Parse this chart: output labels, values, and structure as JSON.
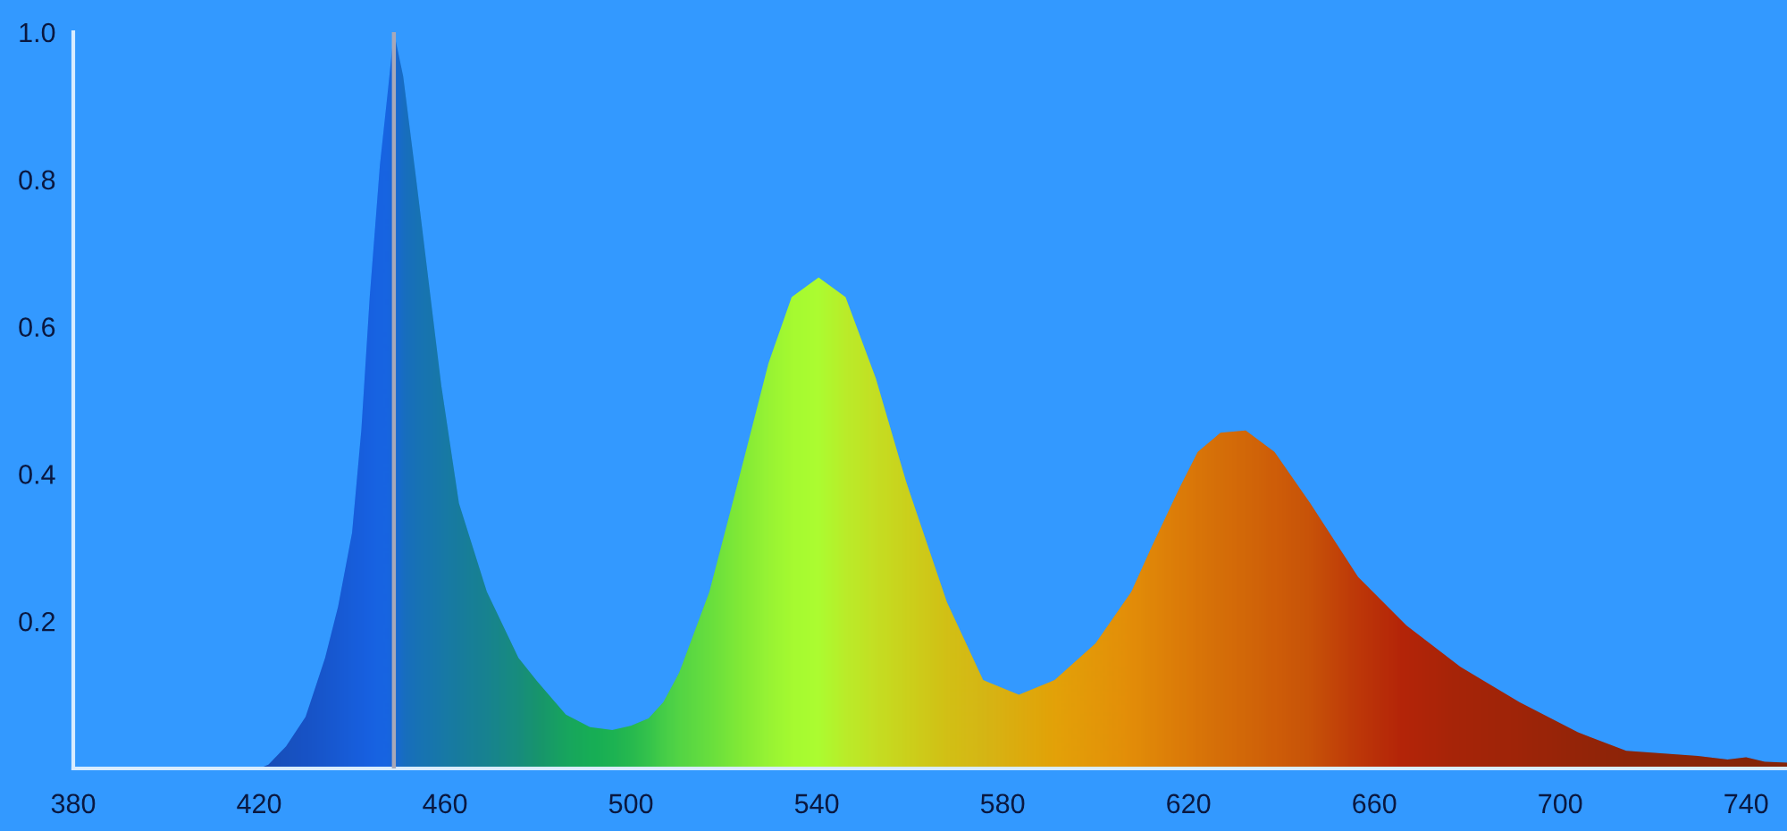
{
  "chart_data": {
    "type": "area",
    "x": [
      420,
      422,
      425.8,
      430,
      434.2,
      437,
      440,
      442,
      443.8,
      446,
      447.7,
      449,
      451,
      453.8,
      456.5,
      459.2,
      463,
      469,
      475.8,
      479.6,
      486,
      491.2,
      496,
      500,
      503.8,
      507,
      510.4,
      516.9,
      523.1,
      529.6,
      534.6,
      540.4,
      546.2,
      552.7,
      559.2,
      568,
      575.8,
      583.5,
      591.2,
      600,
      607.7,
      612,
      618,
      622,
      626.9,
      632.3,
      638.5,
      646.2,
      656.5,
      666.9,
      678.5,
      691.2,
      703.8,
      714.2,
      729.6,
      736,
      740,
      744,
      748.8
    ],
    "values": [
      0,
      0.005,
      0.03,
      0.07,
      0.15,
      0.22,
      0.32,
      0.46,
      0.64,
      0.82,
      0.92,
      1.0,
      0.94,
      0.8,
      0.66,
      0.52,
      0.36,
      0.24,
      0.15,
      0.12,
      0.073,
      0.056,
      0.052,
      0.058,
      0.068,
      0.09,
      0.13,
      0.24,
      0.39,
      0.55,
      0.64,
      0.667,
      0.64,
      0.53,
      0.39,
      0.226,
      0.12,
      0.1,
      0.12,
      0.17,
      0.24,
      0.3,
      0.38,
      0.43,
      0.456,
      0.459,
      0.43,
      0.36,
      0.26,
      0.194,
      0.138,
      0.09,
      0.049,
      0.024,
      0.017,
      0.012,
      0.015,
      0.009,
      0.008
    ],
    "colors": [
      "#0030c8",
      "#0032d0",
      "#0035d8",
      "#0038e0",
      "#003ce8",
      "#0040f0",
      "#0044f8",
      "#0046fc",
      "#0048ff",
      "#004cff",
      "#004cff",
      "#0050f0",
      "#0058d8",
      "#005ccc",
      "#0060c4",
      "#0064bc",
      "#0068b0",
      "#0070a0",
      "#007c8a",
      "#008478",
      "#009866",
      "#00a25c",
      "#08a858",
      "#14b054",
      "#24bc50",
      "#38c84c",
      "#48d048",
      "#60dc40",
      "#7ce838",
      "#98f434",
      "#a8fc30",
      "#b0ff30",
      "#c0ec28",
      "#ccdc20",
      "#d4cc18",
      "#dcb810",
      "#e0ac10",
      "#e8a008",
      "#f09400",
      "#f08800",
      "#f07c00",
      "#ec7400",
      "#e86800",
      "#e46000",
      "#e05800",
      "#dc5000",
      "#d84400",
      "#d03800",
      "#c41800",
      "#b80000",
      "#a80000",
      "#a00000",
      "#940000",
      "#8c0000",
      "#880000",
      "#840000",
      "#820000",
      "#800000",
      "#800000"
    ],
    "xlim": [
      380,
      748.8
    ],
    "ylim": [
      0,
      1.0
    ],
    "xticks": [
      380,
      420,
      460,
      500,
      540,
      580,
      620,
      660,
      700,
      740
    ],
    "yticks": [
      0.2,
      0.4,
      0.6,
      0.8,
      {
        "value": 1,
        "label": "1.0"
      }
    ],
    "ref_lines": [
      {
        "axis": "x",
        "value": 449,
        "color": "#a8a8b8"
      }
    ],
    "grid": false
  }
}
